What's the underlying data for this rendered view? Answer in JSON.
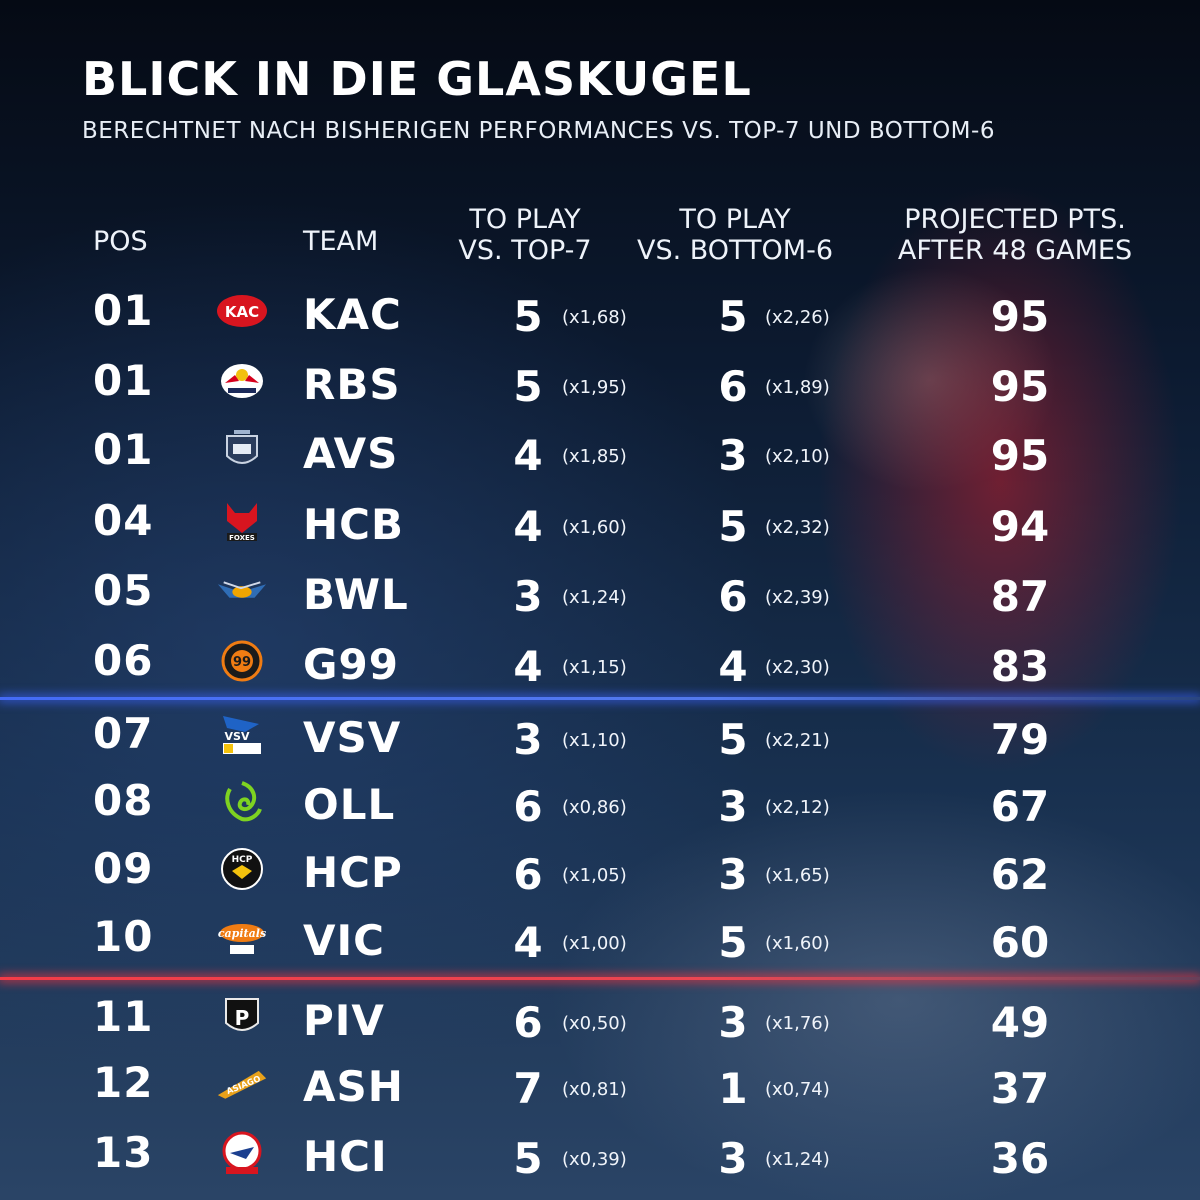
{
  "title": "BLICK IN DIE GLASKUGEL",
  "subtitle": "BERECHTNET NACH BISHERIGEN PERFORMANCES VS. TOP-7 UND BOTTOM-6",
  "headers": {
    "pos": "POS",
    "team": "TEAM",
    "top7_line1": "TO PLAY",
    "top7_line2": "VS. TOP-7",
    "bot6_line1": "TO PLAY",
    "bot6_line2": "VS. BOTTOM-6",
    "proj_line1": "PROJECTED PTS.",
    "proj_line2": "AFTER 48 GAMES"
  },
  "colors": {
    "blue_line": "#4a6eff",
    "red_line": "#ff3c46",
    "text": "#ffffff"
  },
  "rows": [
    {
      "pos": "01",
      "team": "KAC",
      "logo": "kac-logo",
      "top7": "5",
      "top7_mult": "(x1,68)",
      "bot6": "5",
      "bot6_mult": "(x2,26)",
      "proj": "95"
    },
    {
      "pos": "01",
      "team": "RBS",
      "logo": "red-bull-salzburg-logo",
      "top7": "5",
      "top7_mult": "(x1,95)",
      "bot6": "6",
      "bot6_mult": "(x1,89)",
      "proj": "95"
    },
    {
      "pos": "01",
      "team": "AVS",
      "logo": "avs-logo",
      "top7": "4",
      "top7_mult": "(x1,85)",
      "bot6": "3",
      "bot6_mult": "(x2,10)",
      "proj": "95"
    },
    {
      "pos": "04",
      "team": "HCB",
      "logo": "foxes-logo",
      "top7": "4",
      "top7_mult": "(x1,60)",
      "bot6": "5",
      "bot6_mult": "(x2,32)",
      "proj": "94"
    },
    {
      "pos": "05",
      "team": "BWL",
      "logo": "black-wings-logo",
      "top7": "3",
      "top7_mult": "(x1,24)",
      "bot6": "6",
      "bot6_mult": "(x2,39)",
      "proj": "87"
    },
    {
      "pos": "06",
      "team": "G99",
      "logo": "g99-logo",
      "top7": "4",
      "top7_mult": "(x1,15)",
      "bot6": "4",
      "bot6_mult": "(x2,30)",
      "proj": "83"
    },
    {
      "pos": "07",
      "team": "VSV",
      "logo": "vsv-logo",
      "top7": "3",
      "top7_mult": "(x1,10)",
      "bot6": "5",
      "bot6_mult": "(x2,21)",
      "proj": "79"
    },
    {
      "pos": "08",
      "team": "OLL",
      "logo": "olimpija-dragon-logo",
      "top7": "6",
      "top7_mult": "(x0,86)",
      "bot6": "3",
      "bot6_mult": "(x2,12)",
      "proj": "67"
    },
    {
      "pos": "09",
      "team": "HCP",
      "logo": "hcp-logo",
      "top7": "6",
      "top7_mult": "(x1,05)",
      "bot6": "3",
      "bot6_mult": "(x1,65)",
      "proj": "62"
    },
    {
      "pos": "10",
      "team": "VIC",
      "logo": "capitals-logo",
      "top7": "4",
      "top7_mult": "(x1,00)",
      "bot6": "5",
      "bot6_mult": "(x1,60)",
      "proj": "60"
    },
    {
      "pos": "11",
      "team": "PIV",
      "logo": "pioneers-logo",
      "top7": "6",
      "top7_mult": "(x0,50)",
      "bot6": "3",
      "bot6_mult": "(x1,76)",
      "proj": "49"
    },
    {
      "pos": "12",
      "team": "ASH",
      "logo": "asiago-logo",
      "top7": "7",
      "top7_mult": "(x0,81)",
      "bot6": "1",
      "bot6_mult": "(x0,74)",
      "proj": "37"
    },
    {
      "pos": "13",
      "team": "HCI",
      "logo": "haie-logo",
      "top7": "5",
      "top7_mult": "(x0,39)",
      "bot6": "3",
      "bot6_mult": "(x1,24)",
      "proj": "36"
    }
  ]
}
